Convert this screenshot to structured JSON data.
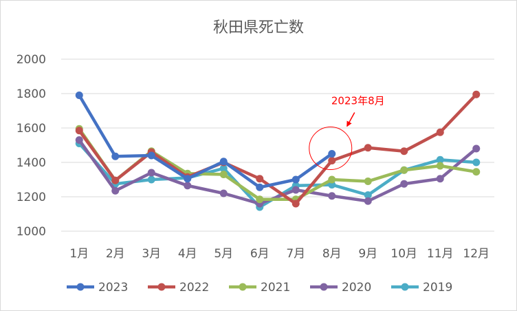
{
  "chart_data": {
    "type": "line",
    "title": "秋田県死亡数",
    "xlabel": "",
    "ylabel": "",
    "categories": [
      "1月",
      "2月",
      "3月",
      "4月",
      "5月",
      "6月",
      "7月",
      "8月",
      "9月",
      "10月",
      "11月",
      "12月"
    ],
    "ylim": [
      1000,
      2000
    ],
    "yticks": [
      1000,
      1200,
      1400,
      1600,
      1800,
      2000
    ],
    "grid": true,
    "legend_position": "bottom",
    "series": [
      {
        "name": "2023",
        "color": "#4472c4",
        "values": [
          1790,
          1435,
          1440,
          1305,
          1405,
          1255,
          1300,
          1450,
          null,
          null,
          null,
          null
        ]
      },
      {
        "name": "2022",
        "color": "#c0504d",
        "values": [
          1585,
          1295,
          1460,
          1315,
          1400,
          1305,
          1160,
          1410,
          1485,
          1465,
          1575,
          1795
        ]
      },
      {
        "name": "2021",
        "color": "#9bbb59",
        "values": [
          1595,
          1295,
          1465,
          1335,
          1330,
          1185,
          1185,
          1300,
          1290,
          1355,
          1380,
          1345
        ]
      },
      {
        "name": "2020",
        "color": "#8064a2",
        "values": [
          1530,
          1235,
          1340,
          1265,
          1220,
          1160,
          1240,
          1205,
          1175,
          1275,
          1305,
          1480
        ]
      },
      {
        "name": "2019",
        "color": "#4bacc6",
        "values": [
          1510,
          1275,
          1300,
          1310,
          1365,
          1140,
          1265,
          1270,
          1210,
          1355,
          1415,
          1400
        ]
      }
    ],
    "annotation": {
      "text": "2023年8月",
      "target_series": "2023",
      "target_category": "8月"
    }
  }
}
